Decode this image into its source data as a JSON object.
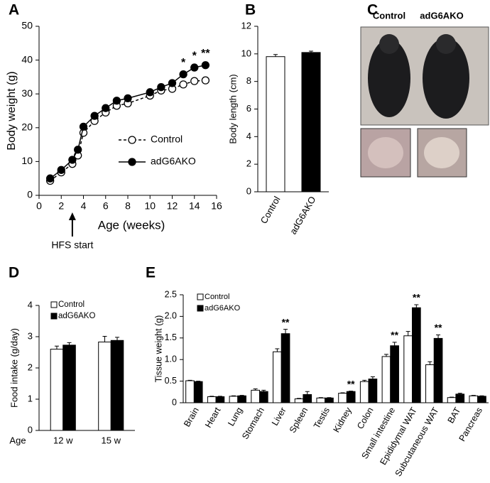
{
  "chart_data": [
    {
      "panel": "A",
      "type": "line",
      "xlabel": "Age (weeks)",
      "ylabel": "Body weight (g)",
      "x": [
        1,
        2,
        3,
        3.5,
        4,
        5,
        6,
        7,
        8,
        10,
        11,
        12,
        13,
        14,
        15
      ],
      "series": [
        {
          "name": "Control",
          "color": "#000000",
          "marker_fill": "#ffffff",
          "line_style": "dashed",
          "values": [
            4.3,
            6.8,
            9.3,
            11.8,
            18.5,
            22,
            24.5,
            26.5,
            27.2,
            29.5,
            31,
            31.5,
            32.8,
            33.8,
            34
          ]
        },
        {
          "name": "adG6AKO",
          "color": "#000000",
          "marker_fill": "#000000",
          "line_style": "solid",
          "values": [
            5,
            7.5,
            10.5,
            13.5,
            20.3,
            23.5,
            25.8,
            28,
            28.7,
            30.5,
            32,
            33.2,
            35.8,
            37.8,
            38.5
          ]
        }
      ],
      "significance": [
        null,
        null,
        null,
        null,
        null,
        null,
        null,
        null,
        null,
        null,
        null,
        null,
        "*",
        "*",
        "**"
      ],
      "annotation": {
        "text": "HFS start",
        "x": 3
      },
      "xlim": [
        0,
        16
      ],
      "xticks": [
        0,
        2,
        4,
        6,
        8,
        10,
        12,
        14,
        16
      ],
      "ylim": [
        0,
        50
      ],
      "yticks": [
        0,
        10,
        20,
        30,
        40,
        50
      ]
    },
    {
      "panel": "B",
      "type": "bar",
      "ylabel": "Body length (cm)",
      "categories": [
        "Control",
        "adG6AKO"
      ],
      "values": [
        9.8,
        10.1
      ],
      "errors": [
        0.15,
        0.1
      ],
      "colors": [
        "#ffffff",
        "#000000"
      ],
      "ylim": [
        0,
        12
      ],
      "yticks": [
        0,
        2,
        4,
        6,
        8,
        10,
        12
      ]
    },
    {
      "panel": "C",
      "type": "image",
      "labels": [
        "Control",
        "adG6AKO"
      ]
    },
    {
      "panel": "D",
      "type": "grouped_bar",
      "ylabel": "Food intake (g/day)",
      "xlabel": "Age",
      "categories": [
        "12 w",
        "15 w"
      ],
      "series": [
        {
          "name": "Control",
          "color": "#ffffff",
          "values": [
            2.6,
            2.83
          ],
          "errors": [
            0.1,
            0.18
          ]
        },
        {
          "name": "adG6AKO",
          "color": "#000000",
          "values": [
            2.73,
            2.88
          ],
          "errors": [
            0.08,
            0.1
          ]
        }
      ],
      "ylim": [
        0,
        4
      ],
      "yticks": [
        0,
        1,
        2,
        3,
        4
      ]
    },
    {
      "panel": "E",
      "type": "grouped_bar",
      "ylabel": "Tissue weight (g)",
      "categories": [
        "Brain",
        "Heart",
        "Lung",
        "Stomach",
        "Liver",
        "Spleen",
        "Testis",
        "Kidney",
        "Colon",
        "Small intestine",
        "Epididymal WAT",
        "Subcutaneous WAT",
        "BAT",
        "Pancreas"
      ],
      "series": [
        {
          "name": "Control",
          "color": "#ffffff",
          "values": [
            0.51,
            0.14,
            0.15,
            0.29,
            1.18,
            0.09,
            0.11,
            0.22,
            0.49,
            1.07,
            1.55,
            0.88,
            0.12,
            0.16
          ],
          "errors": [
            0.01,
            0.01,
            0.01,
            0.03,
            0.07,
            0.01,
            0.01,
            0.01,
            0.03,
            0.05,
            0.1,
            0.07,
            0.01,
            0.01
          ]
        },
        {
          "name": "adG6AKO",
          "color": "#000000",
          "values": [
            0.49,
            0.14,
            0.16,
            0.26,
            1.6,
            0.19,
            0.11,
            0.26,
            0.55,
            1.32,
            2.2,
            1.49,
            0.2,
            0.15
          ],
          "errors": [
            0.01,
            0.01,
            0.01,
            0.03,
            0.1,
            0.07,
            0.01,
            0.01,
            0.05,
            0.08,
            0.07,
            0.08,
            0.02,
            0.01
          ]
        }
      ],
      "significance": [
        null,
        null,
        null,
        null,
        "**",
        null,
        null,
        "**",
        null,
        "**",
        "**",
        "**",
        null,
        null
      ],
      "ylim": [
        0,
        2.5
      ],
      "yticks": [
        0,
        0.5,
        {
          "value": 1,
          "label": "1.0"
        },
        1.5,
        {
          "value": 2,
          "label": "2.0"
        },
        2.5
      ]
    }
  ]
}
